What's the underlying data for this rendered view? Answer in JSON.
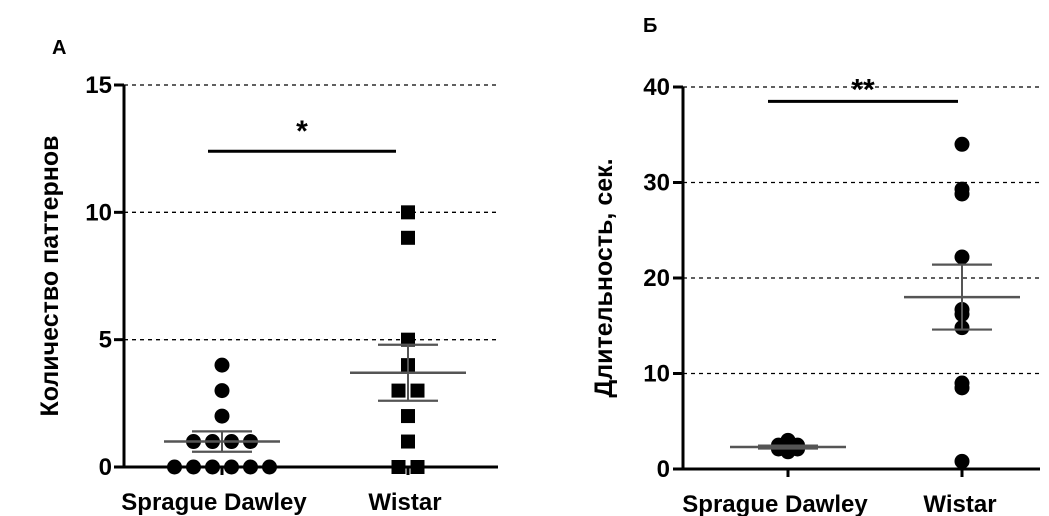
{
  "chart_data": [
    {
      "panel": "А",
      "type": "scatter",
      "ylabel": "Количество паттернов",
      "ylim": [
        0,
        15
      ],
      "yticks": [
        0,
        5,
        10,
        15
      ],
      "grid": "dashed horizontal at 5, 10, 15",
      "categories": [
        "Sprague Dawley",
        "Wistar"
      ],
      "series": [
        {
          "category": "Sprague Dawley",
          "marker": "circle",
          "values": [
            4,
            3,
            2,
            1,
            1,
            1,
            1,
            0,
            0,
            0,
            0,
            0,
            0
          ],
          "mean": 1.0,
          "sem": 0.4
        },
        {
          "category": "Wistar",
          "marker": "square",
          "values": [
            10,
            9,
            5,
            4,
            3,
            3,
            2,
            1,
            0,
            0
          ],
          "mean": 3.7,
          "sem": 1.1
        }
      ],
      "significance": "*",
      "significance_line_y": 12.4
    },
    {
      "panel": "Б",
      "type": "scatter",
      "ylabel": "Длительность, сек.",
      "ylim": [
        0,
        40
      ],
      "yticks": [
        0,
        10,
        20,
        30,
        40
      ],
      "grid": "dashed horizontal at 10, 20, 30, 40",
      "categories": [
        "Sprague Dawley",
        "Wistar"
      ],
      "series": [
        {
          "category": "Sprague Dawley",
          "marker": "circle",
          "values": [
            2.5,
            2.3,
            2.1,
            2.2,
            2.6,
            1.8,
            2.0,
            3.0,
            2.4,
            2.2,
            2.1,
            2.5
          ],
          "mean": 2.3,
          "sem": 0.15
        },
        {
          "category": "Wistar",
          "marker": "circle",
          "values": [
            34,
            29.3,
            28.8,
            22.2,
            16.7,
            16.2,
            14.8,
            9.0,
            8.5,
            0.8
          ],
          "mean": 18.0,
          "sem": 3.4
        }
      ],
      "significance": "**",
      "significance_line_y": 38.5
    }
  ]
}
